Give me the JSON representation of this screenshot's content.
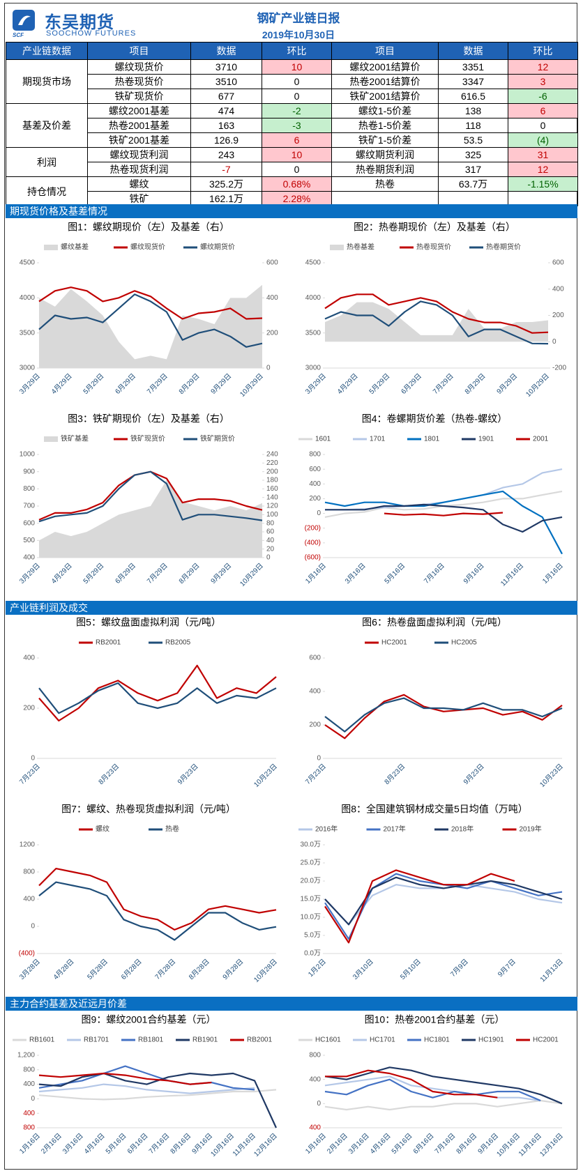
{
  "header": {
    "logo_mark": "SCF",
    "logo_cn": "东吴期货",
    "logo_en": "SOOCHOW FUTURES",
    "title": "钢矿产业链日报",
    "date": "2019年10月30日"
  },
  "table": {
    "columns": [
      "产业链数据",
      "项目",
      "数据",
      "环比",
      "项目",
      "数据",
      "环比"
    ],
    "groups": [
      {
        "label": "期现货市场",
        "rows": [
          [
            "螺纹现货价",
            "3710",
            "10",
            "螺纹2001结算价",
            "3351",
            "12"
          ],
          [
            "热卷现货价",
            "3510",
            "0",
            "热卷2001结算价",
            "3347",
            "3"
          ],
          [
            "铁矿现货价",
            "677",
            "0",
            "铁矿2001结算价",
            "616.5",
            "-6"
          ]
        ]
      },
      {
        "label": "基差及价差",
        "rows": [
          [
            "螺纹2001基差",
            "474",
            "-2",
            "螺纹1-5价差",
            "138",
            "6"
          ],
          [
            "热卷2001基差",
            "163",
            "-3",
            "热卷1-5价差",
            "118",
            "0"
          ],
          [
            "铁矿2001基差",
            "126.9",
            "6",
            "铁矿1-5价差",
            "53.5",
            "(4)"
          ]
        ]
      },
      {
        "label": "利润",
        "rows": [
          [
            "螺纹现货利润",
            "243",
            "10",
            "螺纹期货利润",
            "325",
            "31"
          ],
          [
            "热卷现货利润",
            "-7",
            "0",
            "热卷期货利润",
            "317",
            "12"
          ]
        ]
      },
      {
        "label": "持仓情况",
        "rows": [
          [
            "螺纹",
            "325.2万",
            "0.68%",
            "热卷",
            "63.7万",
            "-1.15%"
          ],
          [
            "铁矿",
            "162.1万",
            "2.28%",
            null,
            null,
            null
          ]
        ]
      }
    ]
  },
  "sections": [
    "期现货价格及基差情况",
    "产业链利润及成交",
    "主力合约基差及近远月价差"
  ],
  "chart_data": [
    {
      "type": "line",
      "title": "图1：螺纹期现价（左）及基差（右）",
      "categories": [
        "3月29日",
        null,
        "4月29日",
        null,
        "5月29日",
        null,
        "6月29日",
        null,
        "7月29日",
        null,
        "8月29日",
        null,
        "9月29日",
        null,
        "10月29日"
      ],
      "series": [
        {
          "name": "螺纹基差",
          "kind": "area",
          "axis": "y2",
          "color": "#d9d9d9",
          "values": [
            400,
            350,
            450,
            380,
            300,
            150,
            50,
            70,
            50,
            300,
            280,
            250,
            400,
            400,
            474
          ]
        },
        {
          "name": "螺纹现货价",
          "color": "#c00000",
          "values": [
            3950,
            4100,
            4150,
            4100,
            3950,
            4000,
            4100,
            4020,
            3850,
            3700,
            3780,
            3800,
            3850,
            3700,
            3710
          ]
        },
        {
          "name": "螺纹期货价",
          "color": "#1f4e79",
          "values": [
            3550,
            3750,
            3700,
            3720,
            3650,
            3850,
            4050,
            3950,
            3800,
            3400,
            3500,
            3550,
            3450,
            3300,
            3351
          ]
        }
      ],
      "ylim": [
        3000,
        4500
      ],
      "yticks": [
        3000,
        3500,
        4000,
        4500
      ],
      "y2lim": [
        0,
        600
      ],
      "y2ticks": [
        0,
        200,
        400,
        600
      ]
    },
    {
      "type": "line",
      "title": "图2：热卷期现价（左）及基差（右）",
      "categories": [
        "3月29日",
        null,
        "4月29日",
        null,
        "5月29日",
        null,
        "6月29日",
        null,
        "7月29日",
        null,
        "8月29日",
        null,
        "9月29日",
        null,
        "10月29日"
      ],
      "series": [
        {
          "name": "热卷基差",
          "kind": "area",
          "axis": "y2",
          "color": "#d9d9d9",
          "values": [
            150,
            200,
            300,
            300,
            250,
            150,
            50,
            50,
            50,
            250,
            100,
            100,
            150,
            150,
            163
          ]
        },
        {
          "name": "热卷现货价",
          "color": "#c00000",
          "values": [
            3850,
            4000,
            4050,
            4050,
            3900,
            3950,
            4000,
            3950,
            3800,
            3700,
            3650,
            3650,
            3600,
            3500,
            3510
          ]
        },
        {
          "name": "热卷期货价",
          "color": "#1f4e79",
          "values": [
            3700,
            3800,
            3750,
            3750,
            3600,
            3800,
            3950,
            3900,
            3750,
            3450,
            3550,
            3550,
            3450,
            3350,
            3347
          ]
        }
      ],
      "ylim": [
        3000,
        4500
      ],
      "yticks": [
        3000,
        3500,
        4000,
        4500
      ],
      "y2lim": [
        -200,
        600
      ],
      "y2ticks": [
        -200,
        0,
        200,
        400,
        600
      ]
    },
    {
      "type": "line",
      "title": "图3：铁矿期现价（左）及基差（右）",
      "categories": [
        "3月29日",
        null,
        "4月29日",
        null,
        "5月29日",
        null,
        "6月29日",
        null,
        "7月29日",
        null,
        "8月29日",
        null,
        "9月29日",
        null,
        "10月29日"
      ],
      "series": [
        {
          "name": "铁矿基差",
          "kind": "area",
          "axis": "y2",
          "color": "#d9d9d9",
          "values": [
            40,
            60,
            50,
            60,
            80,
            100,
            110,
            120,
            180,
            130,
            120,
            110,
            120,
            110,
            126.9
          ]
        },
        {
          "name": "铁矿现货价",
          "color": "#c00000",
          "values": [
            620,
            660,
            660,
            680,
            720,
            820,
            880,
            900,
            860,
            720,
            740,
            740,
            730,
            700,
            677
          ]
        },
        {
          "name": "铁矿期货价",
          "color": "#1f4e79",
          "values": [
            610,
            640,
            650,
            660,
            700,
            800,
            880,
            900,
            830,
            620,
            650,
            650,
            640,
            630,
            616.5
          ]
        }
      ],
      "ylim": [
        400,
        1000
      ],
      "yticks": [
        400,
        500,
        600,
        700,
        800,
        900,
        1000
      ],
      "y2lim": [
        0,
        240
      ],
      "y2ticks": [
        0,
        20,
        40,
        60,
        80,
        100,
        120,
        140,
        160,
        180,
        200,
        220,
        240
      ]
    },
    {
      "type": "line",
      "title": "图4：卷螺期货价差（热卷-螺纹）",
      "negative_tick_color": "#c00000",
      "categories": [
        "1月16日",
        null,
        "3月16日",
        null,
        "5月16日",
        null,
        "7月16日",
        null,
        "9月16日",
        null,
        "11月16日",
        null,
        "1月16日"
      ],
      "series": [
        {
          "name": "1601",
          "color": "#d9d9d9",
          "values": [
            -50,
            0,
            20,
            80,
            50,
            60,
            100,
            120,
            150,
            200,
            200,
            250,
            300
          ]
        },
        {
          "name": "1701",
          "color": "#b4c7e7",
          "values": [
            50,
            50,
            60,
            80,
            100,
            120,
            150,
            200,
            250,
            350,
            400,
            550,
            600
          ]
        },
        {
          "name": "1801",
          "color": "#0070c0",
          "values": [
            150,
            100,
            150,
            150,
            100,
            100,
            150,
            200,
            250,
            300,
            100,
            -50,
            -550
          ]
        },
        {
          "name": "1901",
          "color": "#1f3864",
          "values": [
            50,
            50,
            50,
            100,
            100,
            120,
            100,
            80,
            50,
            -150,
            -250,
            -100,
            -50
          ]
        },
        {
          "name": "2001",
          "color": "#c00000",
          "values": [
            null,
            null,
            null,
            0,
            -20,
            -10,
            -30,
            0,
            -10,
            10,
            null,
            null,
            null
          ]
        }
      ],
      "ylim": [
        -600,
        800
      ],
      "yticks": [
        {
          "value": -600,
          "label": "(600)"
        },
        {
          "value": -400,
          "label": "(400)"
        },
        {
          "value": -200,
          "label": "(200)"
        },
        0,
        200,
        400,
        600,
        800
      ]
    },
    {
      "type": "line",
      "title": "图5：螺纹盘面虚拟利润（元/吨）",
      "categories": [
        "7月23日",
        null,
        null,
        null,
        "8月23日",
        null,
        null,
        null,
        "9月23日",
        null,
        null,
        null,
        "10月23日"
      ],
      "series": [
        {
          "name": "RB2001",
          "color": "#c00000",
          "values": [
            240,
            150,
            200,
            280,
            310,
            260,
            230,
            260,
            370,
            240,
            280,
            260,
            325
          ]
        },
        {
          "name": "RB2005",
          "color": "#1f4e79",
          "values": [
            280,
            180,
            220,
            270,
            300,
            220,
            200,
            220,
            280,
            220,
            250,
            240,
            280
          ]
        }
      ],
      "ylim": [
        0,
        400
      ],
      "yticks": [
        0,
        200,
        400
      ]
    },
    {
      "type": "line",
      "title": "图6：热卷盘面虚拟利润（元/吨）",
      "categories": [
        "7月23日",
        null,
        null,
        null,
        "8月23日",
        null,
        null,
        null,
        "9月23日",
        null,
        null,
        null,
        "10月23日"
      ],
      "series": [
        {
          "name": "HC2001",
          "color": "#c00000",
          "values": [
            200,
            120,
            240,
            340,
            380,
            310,
            280,
            290,
            300,
            260,
            280,
            230,
            317
          ]
        },
        {
          "name": "HC2005",
          "color": "#1f4e79",
          "values": [
            250,
            160,
            260,
            330,
            360,
            300,
            300,
            290,
            330,
            290,
            290,
            250,
            300
          ]
        }
      ],
      "ylim": [
        0,
        600
      ],
      "yticks": [
        0,
        200,
        400,
        600
      ]
    },
    {
      "type": "line",
      "title": "图7：螺纹、热卷现货虚拟利润（元/吨）",
      "negative_tick_color": "#c00000",
      "categories": [
        "3月28日",
        null,
        "4月28日",
        null,
        "5月28日",
        null,
        "6月28日",
        null,
        "7月28日",
        null,
        "8月28日",
        null,
        "9月28日",
        null,
        "10月28日"
      ],
      "series": [
        {
          "name": "螺纹",
          "color": "#c00000",
          "values": [
            600,
            850,
            800,
            750,
            650,
            250,
            150,
            100,
            -50,
            50,
            250,
            300,
            250,
            200,
            243
          ]
        },
        {
          "name": "热卷",
          "color": "#1f4e79",
          "values": [
            450,
            650,
            600,
            550,
            450,
            100,
            0,
            -50,
            -200,
            0,
            200,
            200,
            50,
            -50,
            -7
          ]
        }
      ],
      "ylim": [
        -400,
        1200
      ],
      "yticks": [
        {
          "value": -400,
          "label": "(400)"
        },
        0,
        400,
        800,
        1200
      ]
    },
    {
      "type": "line",
      "title": "图8：全国建筑钢材成交量5日均值（万吨）",
      "categories": [
        "1月2日",
        null,
        "3月10日",
        null,
        "5月10日",
        null,
        "7月9日",
        null,
        "9月7日",
        null,
        "11月13日"
      ],
      "series": [
        {
          "name": "2016年",
          "color": "#b4c7e7",
          "values": [
            15,
            8,
            16,
            19,
            18,
            18,
            19,
            18,
            17,
            15,
            14
          ]
        },
        {
          "name": "2017年",
          "color": "#4472c4",
          "values": [
            14,
            4,
            18,
            22,
            20,
            19,
            18,
            20,
            18,
            16,
            17
          ]
        },
        {
          "name": "2018年",
          "color": "#1f3864",
          "values": [
            15,
            8,
            18,
            21,
            19,
            18,
            19,
            20,
            19,
            17,
            15
          ]
        },
        {
          "name": "2019年",
          "color": "#c00000",
          "values": [
            13,
            3,
            20,
            23,
            21,
            19,
            19,
            22,
            20,
            null,
            null
          ]
        }
      ],
      "ylim": [
        0,
        30
      ],
      "yticks": [
        {
          "value": 0,
          "label": "0.0万"
        },
        {
          "value": 5,
          "label": "5.0万"
        },
        {
          "value": 10,
          "label": "10.0万"
        },
        {
          "value": 15,
          "label": "15.0万"
        },
        {
          "value": 20,
          "label": "20.0万"
        },
        {
          "value": 25,
          "label": "25.0万"
        },
        {
          "value": 30,
          "label": "30.0万"
        }
      ]
    },
    {
      "type": "line",
      "title": "图9：螺纹2001合约基差（元）",
      "negative_tick_color": "#c00000",
      "categories": [
        "1月16日",
        "2月16日",
        "3月16日",
        "4月16日",
        "5月16日",
        "6月16日",
        "7月16日",
        "8月16日",
        "9月16日",
        "10月16日",
        "11月16日",
        "12月16日"
      ],
      "series": [
        {
          "name": "RB1601",
          "color": "#d9d9d9",
          "values": [
            100,
            50,
            0,
            -20,
            0,
            50,
            80,
            100,
            150,
            200,
            200,
            250
          ]
        },
        {
          "name": "RB1701",
          "color": "#b4c7e7",
          "values": [
            200,
            250,
            300,
            400,
            350,
            250,
            200,
            150,
            200,
            250,
            300,
            null
          ]
        },
        {
          "name": "RB1801",
          "color": "#4472c4",
          "values": [
            300,
            400,
            500,
            700,
            900,
            700,
            500,
            400,
            450,
            300,
            250,
            null
          ]
        },
        {
          "name": "RB1901",
          "color": "#1f3864",
          "values": [
            400,
            350,
            600,
            700,
            500,
            400,
            600,
            700,
            650,
            700,
            500,
            -800
          ]
        },
        {
          "name": "RB2001",
          "color": "#c00000",
          "values": [
            650,
            600,
            650,
            700,
            650,
            550,
            500,
            400,
            450,
            null,
            null,
            null
          ]
        }
      ],
      "ylim": [
        -800,
        1200
      ],
      "yticks": [
        {
          "value": -800,
          "label": "800"
        },
        {
          "value": -400,
          "label": "400"
        },
        0,
        400,
        800,
        {
          "value": 1200,
          "label": "1,200"
        }
      ]
    },
    {
      "type": "line",
      "title": "图10：热卷2001合约基差（元）",
      "negative_tick_color": "#c00000",
      "categories": [
        "1月16日",
        "2月16日",
        "3月16日",
        "4月16日",
        "5月16日",
        "6月16日",
        "7月16日",
        "8月16日",
        "9月16日",
        "10月16日",
        "11月16日",
        "12月16日"
      ],
      "series": [
        {
          "name": "HC1601",
          "color": "#d9d9d9",
          "values": [
            -50,
            -100,
            -50,
            -100,
            -50,
            -50,
            0,
            0,
            -50,
            0,
            50,
            0
          ]
        },
        {
          "name": "HC1701",
          "color": "#b4c7e7",
          "values": [
            300,
            350,
            400,
            450,
            300,
            250,
            200,
            150,
            100,
            100,
            50,
            null
          ]
        },
        {
          "name": "HC1801",
          "color": "#4472c4",
          "values": [
            200,
            150,
            300,
            400,
            200,
            100,
            200,
            150,
            200,
            200,
            50,
            null
          ]
        },
        {
          "name": "HC1901",
          "color": "#1f3864",
          "values": [
            450,
            400,
            500,
            600,
            550,
            450,
            400,
            350,
            300,
            250,
            150,
            0
          ]
        },
        {
          "name": "HC2001",
          "color": "#c00000",
          "values": [
            450,
            450,
            550,
            500,
            400,
            200,
            150,
            150,
            100,
            null,
            null,
            null
          ]
        }
      ],
      "ylim": [
        -400,
        800
      ],
      "yticks": [
        {
          "value": -400,
          "label": "400"
        },
        0,
        400,
        800
      ]
    }
  ]
}
